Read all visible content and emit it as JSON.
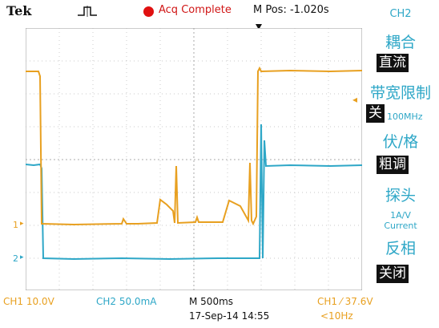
{
  "header": {
    "brand": "Tek",
    "trigger_icon": "pulse-trigger-icon",
    "run_indicator_color": "#e01010",
    "acquisition_status": "Acq Complete",
    "horizontal_position": "M Pos: -1.020s",
    "trigger_position_icon": "down-arrow-icon"
  },
  "side_menu": {
    "channel": "CH2",
    "items": [
      {
        "label": "耦合",
        "value": "直流"
      },
      {
        "label": "带宽限制",
        "value": "关",
        "value_extra": "100MHz"
      },
      {
        "label": "伏/格",
        "value": "粗调"
      },
      {
        "label": "探头",
        "value_lines": [
          "1A/V",
          "Current"
        ]
      },
      {
        "label": "反相",
        "value": "关闭"
      }
    ],
    "active_item_arrow": "left-arrow-icon"
  },
  "channels": {
    "ch1": {
      "marker": "1",
      "color": "#e8a020"
    },
    "ch2": {
      "marker": "2",
      "color": "#2ea7c7"
    }
  },
  "status_bar": {
    "ch1_scale": "CH1  10.0V",
    "ch2_scale": "CH2  50.0mA",
    "timebase": "M 500ms",
    "datetime": "17-Sep-14 14:55",
    "trigger": "CH1  ⁄  37.6V",
    "frequency": "<10Hz"
  }
}
